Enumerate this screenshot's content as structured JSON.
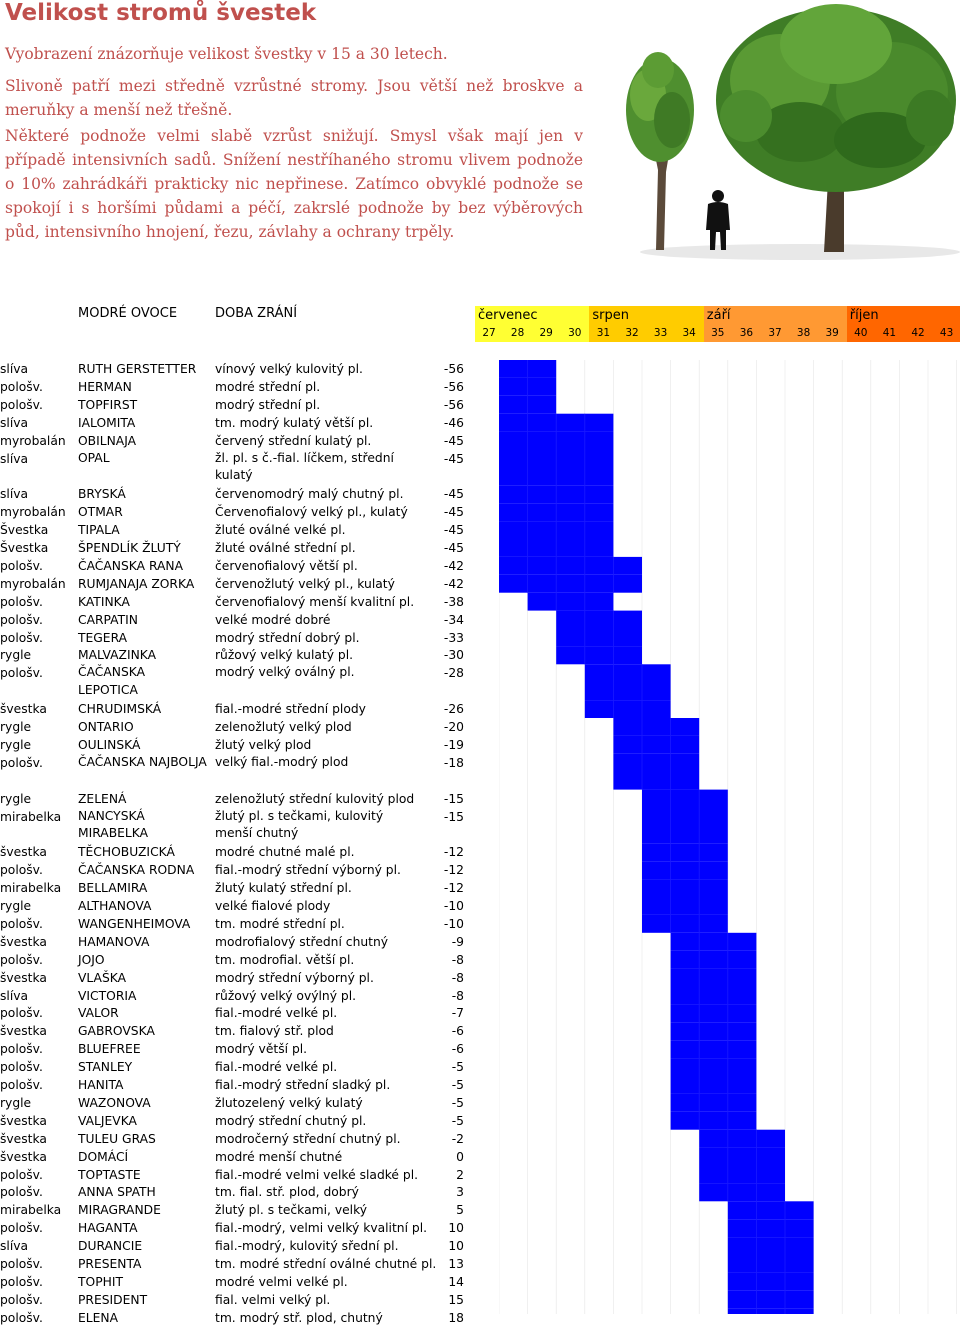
{
  "title": "Velikost stromů švestek",
  "paragraphs": [
    "Vyobrazení znázorňuje velikost švestky v 15 a 30 letech.",
    "Slivoně patří mezi středně vzrůstné stromy. Jsou větší než broskve a meruňky a menší než třešně.",
    "Některé podnože velmi slabě vzrůst snižují. Smysl však mají jen v případě intensivních sadů. Snížení nestříhaného stromu vlivem podnože o 10% zahrádkáři prakticky nic nepřinese. Zatímco obvyklé podnože se spokojí i s horšími půdami a péčí, zakrslé podnože by bez výběrových půd, intensivního hnojení, řezu, závlahy a ochrany trpěly."
  ],
  "header": {
    "fruit_label": "MODRÉ OVOCE",
    "time_label": "DOBA ZRÁNÍ"
  },
  "months": [
    {
      "name": "červenec",
      "weeks": [
        "27",
        "28",
        "29",
        "30"
      ],
      "color": "#ffff33"
    },
    {
      "name": "srpen",
      "weeks": [
        "31",
        "32",
        "33",
        "34"
      ],
      "color": "#ffcc00"
    },
    {
      "name": "září",
      "weeks": [
        "35",
        "36",
        "37",
        "38",
        "39"
      ],
      "color": "#ff9933"
    },
    {
      "name": "říjen",
      "weeks": [
        "40",
        "41",
        "42",
        "43"
      ],
      "color": "#ff6600"
    }
  ],
  "bar_color": "#0000ff",
  "rows": [
    {
      "root": "slíva",
      "name": "RUTH GERSTETTER",
      "desc": "vínový velký kulovitý pl.",
      "days": "-56",
      "start": 0,
      "span": 2
    },
    {
      "root": "pološv.",
      "name": "HERMAN",
      "desc": "modré střední pl.",
      "days": "-56",
      "start": 0,
      "span": 2
    },
    {
      "root": "pološv.",
      "name": "TOPFIRST",
      "desc": "modrý střední pl.",
      "days": "-56",
      "start": 0,
      "span": 2
    },
    {
      "root": "slíva",
      "name": "IALOMITA",
      "desc": "tm. modrý kulatý větší pl.",
      "days": "-46",
      "start": 0,
      "span": 4
    },
    {
      "root": "myrobalán",
      "name": "OBILNAJA",
      "desc": "červený střední kulatý pl.",
      "days": "-45",
      "start": 0,
      "span": 4
    },
    {
      "root": "slíva",
      "name": "OPAL",
      "desc": "žl. pl. s č.-fial. líčkem, střední kulatý",
      "days": "-45",
      "start": 0,
      "span": 4
    },
    {
      "root": "slíva",
      "name": "BRYSKÁ",
      "desc": "červenomodrý malý chutný pl.",
      "days": "-45",
      "start": 0,
      "span": 4
    },
    {
      "root": "myrobalán",
      "name": "OTMAR",
      "desc": "Červenofialový velký pl., kulatý",
      "days": "-45",
      "start": 0,
      "span": 4
    },
    {
      "root": "Švestka",
      "name": "TIPALA",
      "desc": "žluté oválné velké pl.",
      "days": "-45",
      "start": 0,
      "span": 4
    },
    {
      "root": "Švestka",
      "name": "ŠPENDLÍK ŽLUTÝ",
      "desc": "žluté oválné střední pl.",
      "days": "-45",
      "start": 0,
      "span": 4
    },
    {
      "root": "pološv.",
      "name": "ČAČANSKA RANA",
      "desc": "červenofialový větší pl.",
      "days": "-42",
      "start": 0,
      "span": 5
    },
    {
      "root": "myrobalán",
      "name": "RUMJANAJA ZORKA",
      "desc": "červenožlutý velký pl., kulatý",
      "days": "-42",
      "start": 0,
      "span": 5
    },
    {
      "root": "pološv.",
      "name": "KATINKA",
      "desc": "červenofialový menší kvalitní pl.",
      "days": "-38",
      "start": 1,
      "span": 3
    },
    {
      "root": "pološv.",
      "name": "CARPATIN",
      "desc": "velké modré dobré",
      "days": "-34",
      "start": 2,
      "span": 3
    },
    {
      "root": "pološv.",
      "name": "TEGERA",
      "desc": "modrý střední dobrý pl.",
      "days": "-33",
      "start": 2,
      "span": 3
    },
    {
      "root": "rygle",
      "name": "MALVAZINKA",
      "desc": "růžový velký kulatý pl.",
      "days": "-30",
      "start": 2,
      "span": 3
    },
    {
      "root": "pološv.",
      "name": "ČAČANSKA LEPOTICA",
      "desc": "modrý velký oválný pl.",
      "days": "-28",
      "start": 3,
      "span": 3
    },
    {
      "root": "švestka",
      "name": "CHRUDIMSKÁ",
      "desc": "fial.-modré střední plody",
      "days": "-26",
      "start": 3,
      "span": 3
    },
    {
      "root": "rygle",
      "name": "ONTARIO",
      "desc": "zelenožlutý velký plod",
      "days": "-20",
      "start": 4,
      "span": 3
    },
    {
      "root": "rygle",
      "name": "OULINSKÁ",
      "desc": "žlutý velký plod",
      "days": "-19",
      "start": 4,
      "span": 3
    },
    {
      "root": "pološv.",
      "name": "ČAČANSKA NAJBOLJA",
      "desc": "velký fial.-modrý plod",
      "days": "-18",
      "start": 4,
      "span": 3
    },
    {
      "root": "rygle",
      "name": "ZELENÁ",
      "desc": "zelenožlutý střední kulovitý plod",
      "days": "-15",
      "start": 5,
      "span": 3
    },
    {
      "root": "mirabelka",
      "name": "NANCYSKÁ MIRABELKA",
      "desc": "žlutý pl. s tečkami, kulovitý menší chutný",
      "days": "-15",
      "start": 5,
      "span": 3
    },
    {
      "root": "švestka",
      "name": "TĚCHOBUZICKÁ",
      "desc": "modré chutné malé pl.",
      "days": "-12",
      "start": 5,
      "span": 3
    },
    {
      "root": "pološv.",
      "name": "ČAČANSKA RODNA",
      "desc": "fial.-modrý střední výborný pl.",
      "days": "-12",
      "start": 5,
      "span": 3
    },
    {
      "root": "mirabelka",
      "name": "BELLAMIRA",
      "desc": "žlutý kulatý střední pl.",
      "days": "-12",
      "start": 5,
      "span": 3
    },
    {
      "root": "rygle",
      "name": "ALTHANOVA",
      "desc": "velké fialové plody",
      "days": "-10",
      "start": 5,
      "span": 3
    },
    {
      "root": "pološv.",
      "name": "WANGENHEIMOVA",
      "desc": "tm. modré střední pl.",
      "days": "-10",
      "start": 5,
      "span": 3
    },
    {
      "root": "švestka",
      "name": "HAMANOVA",
      "desc": "modrofialový střední chutný",
      "days": "-9",
      "start": 6,
      "span": 3
    },
    {
      "root": "pološv.",
      "name": "JOJO",
      "desc": "tm. modrofial. větší pl.",
      "days": "-8",
      "start": 6,
      "span": 3
    },
    {
      "root": "švestka",
      "name": "VLAŠKA",
      "desc": "modrý střední výborný pl.",
      "days": "-8",
      "start": 6,
      "span": 3
    },
    {
      "root": "slíva",
      "name": "VICTORIA",
      "desc": "růžový velký ovýlný pl.",
      "days": "-8",
      "start": 6,
      "span": 3
    },
    {
      "root": "pološv.",
      "name": "VALOR",
      "desc": "fial.-modré velké pl.",
      "days": "-7",
      "start": 6,
      "span": 3
    },
    {
      "root": "švestka",
      "name": "GABROVSKA",
      "desc": "tm. fialový stř. plod",
      "days": "-6",
      "start": 6,
      "span": 3
    },
    {
      "root": "pološv.",
      "name": "BLUEFREE",
      "desc": "modrý větší pl.",
      "days": "-6",
      "start": 6,
      "span": 3
    },
    {
      "root": "pološv.",
      "name": "STANLEY",
      "desc": "fial.-modré velké pl.",
      "days": "-5",
      "start": 6,
      "span": 3
    },
    {
      "root": "pološv.",
      "name": "HANITA",
      "desc": "fial.-modrý střední sladký pl.",
      "days": "-5",
      "start": 6,
      "span": 3
    },
    {
      "root": "rygle",
      "name": "WAZONOVA",
      "desc": "žlutozelený velký kulatý",
      "days": "-5",
      "start": 6,
      "span": 3
    },
    {
      "root": "švestka",
      "name": "VALJEVKA",
      "desc": "modrý střední chutný pl.",
      "days": "-5",
      "start": 6,
      "span": 3
    },
    {
      "root": "švestka",
      "name": "TULEU GRAS",
      "desc": "modročerný střední chutný pl.",
      "days": "-2",
      "start": 7,
      "span": 3
    },
    {
      "root": "švestka",
      "name": "DOMÁCÍ",
      "desc": "modré menší chutné",
      "days": "0",
      "start": 7,
      "span": 3
    },
    {
      "root": "pološv.",
      "name": "TOPTASTE",
      "desc": "fial.-modré velmi velké sladké pl.",
      "days": "2",
      "start": 7,
      "span": 3
    },
    {
      "root": "pološv.",
      "name": "ANNA SPATH",
      "desc": "tm. fial. stř. plod, dobrý",
      "days": "3",
      "start": 7,
      "span": 3
    },
    {
      "root": "mirabelka",
      "name": "MIRAGRANDE",
      "desc": "žlutý pl. s tečkami, velký",
      "days": "5",
      "start": 8,
      "span": 3
    },
    {
      "root": "pološv.",
      "name": "HAGANTA",
      "desc": "fial.-modrý, velmi velký kvalitní pl.",
      "days": "10",
      "start": 8,
      "span": 3
    },
    {
      "root": "slíva",
      "name": "DURANCIE",
      "desc": "fial.-modrý, kulovitý sřední pl.",
      "days": "10",
      "start": 8,
      "span": 3
    },
    {
      "root": "pološv.",
      "name": "PRESENTA",
      "desc": "tm. modré střední oválné chutné pl.",
      "days": "13",
      "start": 8,
      "span": 3
    },
    {
      "root": "pološv.",
      "name": "TOPHIT",
      "desc": "modré velmi velké pl.",
      "days": "14",
      "start": 8,
      "span": 3
    },
    {
      "root": "pološv.",
      "name": "PRESIDENT",
      "desc": "fial. velmi velký pl.",
      "days": "15",
      "start": 8,
      "span": 3
    },
    {
      "root": "pološv.",
      "name": "ELENA",
      "desc": "tm. modrý stř. plod, chutný",
      "days": "18",
      "start": 8,
      "span": 3
    }
  ]
}
